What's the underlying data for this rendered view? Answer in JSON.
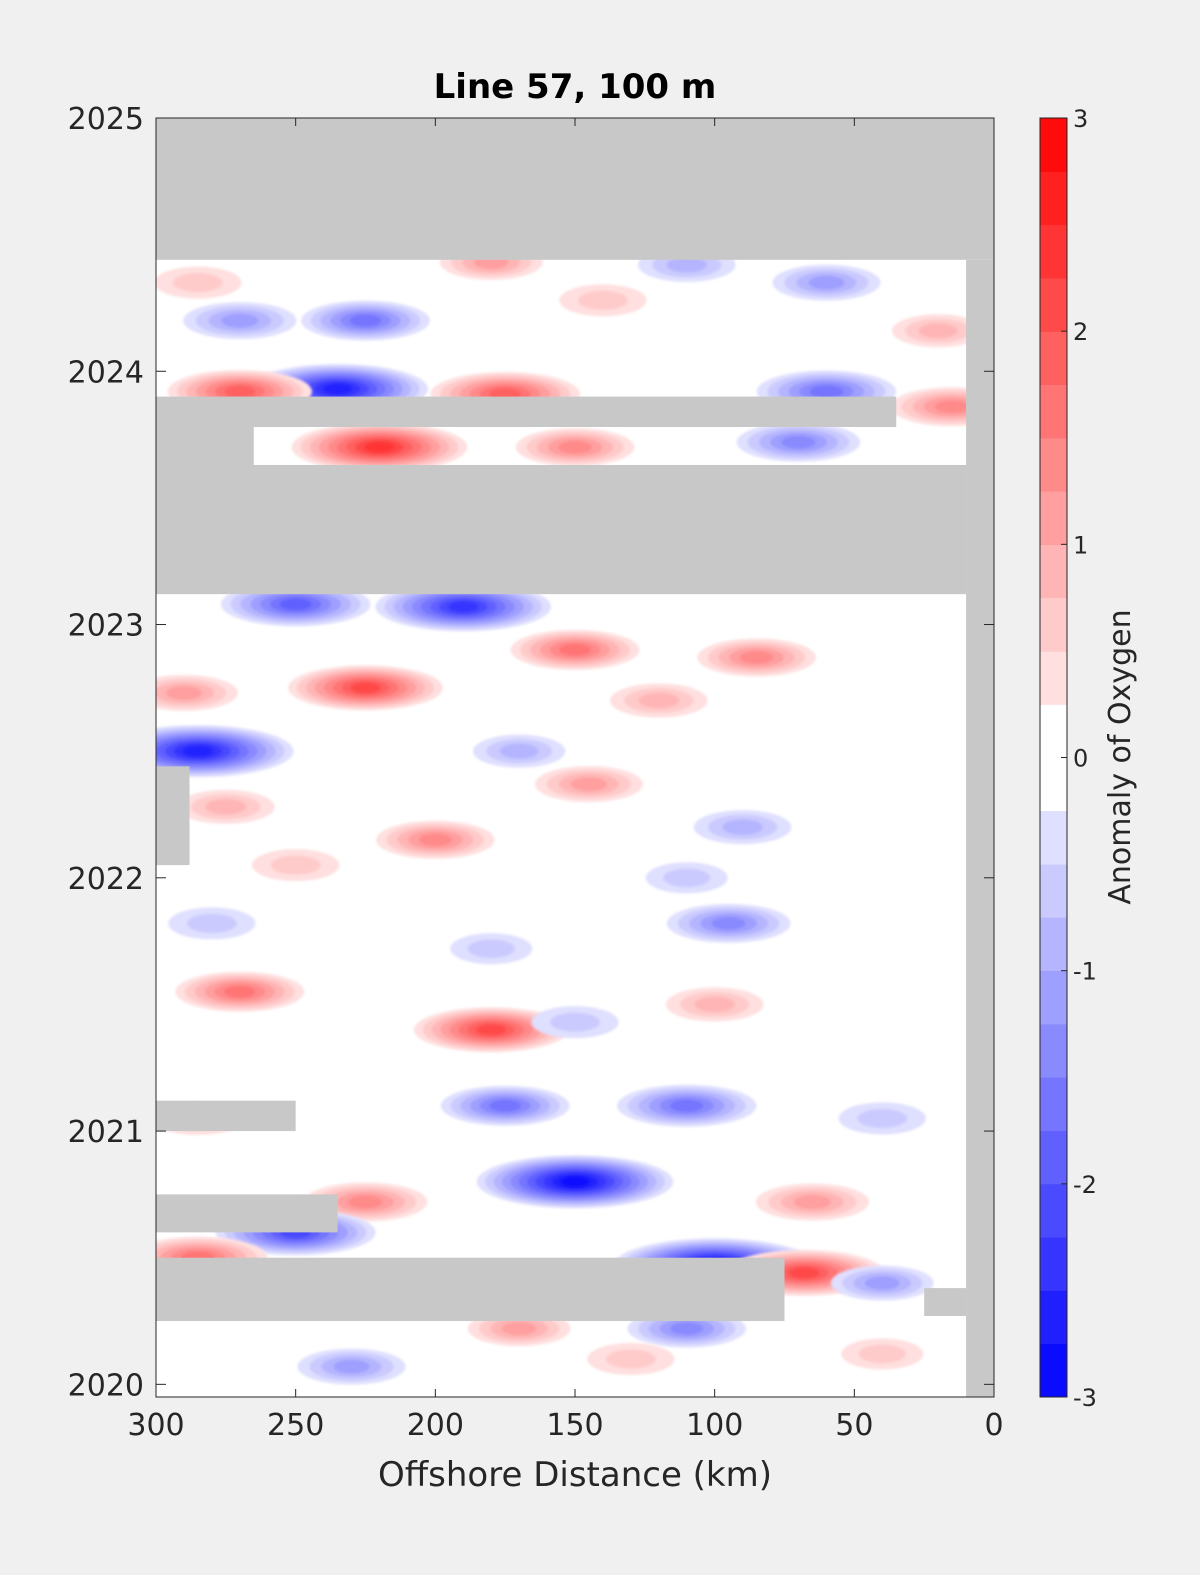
{
  "chart_data": {
    "type": "heatmap",
    "title": "Line 57, 100 m",
    "xlabel": "Offshore Distance (km)",
    "ylabel": "",
    "xlim": [
      300,
      0
    ],
    "ylim": [
      2019.95,
      2025
    ],
    "x_ticks": [
      "300",
      "250",
      "200",
      "150",
      "100",
      "50",
      "0"
    ],
    "x_tick_values": [
      300,
      250,
      200,
      150,
      100,
      50,
      0
    ],
    "y_ticks": [
      "2020",
      "2021",
      "2022",
      "2023",
      "2024",
      "2025"
    ],
    "y_tick_values": [
      2020,
      2021,
      2022,
      2023,
      2024,
      2025
    ],
    "colorbar": {
      "label": "Anomaly of Oxygen",
      "range": [
        -3,
        3
      ],
      "ticks": [
        "3",
        "2",
        "1",
        "0",
        "-1",
        "-2",
        "-3"
      ],
      "tick_values": [
        3,
        2,
        1,
        0,
        -1,
        -2,
        -3
      ],
      "levels": 24,
      "colormap": "blue-white-red",
      "low_color": "#0000ff",
      "high_color": "#ff0000",
      "zero_color": "#ffffff"
    },
    "missing_color": "#c8c8c8",
    "grid": false,
    "anomaly_features": [
      {
        "x": 285,
        "y": 2024.35,
        "value": 0.6
      },
      {
        "x": 180,
        "y": 2024.43,
        "value": 0.9
      },
      {
        "x": 110,
        "y": 2024.42,
        "value": -0.8
      },
      {
        "x": 60,
        "y": 2024.35,
        "value": -1.0
      },
      {
        "x": 270,
        "y": 2024.2,
        "value": -1.1
      },
      {
        "x": 225,
        "y": 2024.2,
        "value": -1.4
      },
      {
        "x": 140,
        "y": 2024.28,
        "value": 0.6
      },
      {
        "x": 20,
        "y": 2024.16,
        "value": 0.7
      },
      {
        "x": 235,
        "y": 2023.93,
        "value": -2.4
      },
      {
        "x": 270,
        "y": 2023.92,
        "value": 1.7
      },
      {
        "x": 175,
        "y": 2023.91,
        "value": 1.8
      },
      {
        "x": 60,
        "y": 2023.92,
        "value": -1.6
      },
      {
        "x": 15,
        "y": 2023.86,
        "value": 1.3
      },
      {
        "x": 220,
        "y": 2023.7,
        "value": 2.3
      },
      {
        "x": 150,
        "y": 2023.7,
        "value": 1.2
      },
      {
        "x": 70,
        "y": 2023.72,
        "value": -1.3
      },
      {
        "x": 190,
        "y": 2023.07,
        "value": -2.3
      },
      {
        "x": 250,
        "y": 2023.08,
        "value": -1.8
      },
      {
        "x": 150,
        "y": 2022.9,
        "value": 1.4
      },
      {
        "x": 85,
        "y": 2022.87,
        "value": 1.2
      },
      {
        "x": 225,
        "y": 2022.75,
        "value": 1.9
      },
      {
        "x": 290,
        "y": 2022.73,
        "value": 1.0
      },
      {
        "x": 120,
        "y": 2022.7,
        "value": 0.8
      },
      {
        "x": 285,
        "y": 2022.5,
        "value": -2.6
      },
      {
        "x": 170,
        "y": 2022.5,
        "value": -0.7
      },
      {
        "x": 145,
        "y": 2022.37,
        "value": 1.0
      },
      {
        "x": 275,
        "y": 2022.28,
        "value": 0.8
      },
      {
        "x": 200,
        "y": 2022.15,
        "value": 1.2
      },
      {
        "x": 90,
        "y": 2022.2,
        "value": -0.8
      },
      {
        "x": 250,
        "y": 2022.05,
        "value": 0.6
      },
      {
        "x": 110,
        "y": 2022.0,
        "value": -0.5
      },
      {
        "x": 95,
        "y": 2021.82,
        "value": -1.3
      },
      {
        "x": 280,
        "y": 2021.82,
        "value": -0.6
      },
      {
        "x": 180,
        "y": 2021.72,
        "value": -0.5
      },
      {
        "x": 270,
        "y": 2021.55,
        "value": 1.4
      },
      {
        "x": 180,
        "y": 2021.4,
        "value": 1.9
      },
      {
        "x": 100,
        "y": 2021.5,
        "value": 0.8
      },
      {
        "x": 150,
        "y": 2021.43,
        "value": -0.6
      },
      {
        "x": 175,
        "y": 2021.1,
        "value": -1.4
      },
      {
        "x": 110,
        "y": 2021.1,
        "value": -1.6
      },
      {
        "x": 285,
        "y": 2021.05,
        "value": 0.7
      },
      {
        "x": 40,
        "y": 2021.05,
        "value": -0.6
      },
      {
        "x": 150,
        "y": 2020.8,
        "value": -2.7
      },
      {
        "x": 225,
        "y": 2020.72,
        "value": 1.3
      },
      {
        "x": 65,
        "y": 2020.72,
        "value": 1.1
      },
      {
        "x": 250,
        "y": 2020.6,
        "value": -2.0
      },
      {
        "x": 100,
        "y": 2020.47,
        "value": -2.8
      },
      {
        "x": 68,
        "y": 2020.44,
        "value": 2.0
      },
      {
        "x": 285,
        "y": 2020.5,
        "value": 1.6
      },
      {
        "x": 40,
        "y": 2020.4,
        "value": -0.9
      },
      {
        "x": 170,
        "y": 2020.22,
        "value": 0.9
      },
      {
        "x": 110,
        "y": 2020.22,
        "value": -1.2
      },
      {
        "x": 230,
        "y": 2020.07,
        "value": -1.0
      },
      {
        "x": 130,
        "y": 2020.1,
        "value": 0.6
      },
      {
        "x": 40,
        "y": 2020.12,
        "value": 0.5
      }
    ],
    "missing_regions": [
      {
        "x0": 300,
        "x1": 0,
        "y0": 2024.44,
        "y1": 2025
      },
      {
        "x0": 10,
        "x1": 0,
        "y0": 2019.95,
        "y1": 2024.44
      },
      {
        "x0": 300,
        "x1": 10,
        "y0": 2023.12,
        "y1": 2023.63
      },
      {
        "x0": 300,
        "x1": 35,
        "y0": 2023.78,
        "y1": 2023.9
      },
      {
        "x0": 300,
        "x1": 265,
        "y0": 2023.62,
        "y1": 2023.8
      },
      {
        "x0": 300,
        "x1": 288,
        "y0": 2022.05,
        "y1": 2022.44
      },
      {
        "x0": 300,
        "x1": 250,
        "y0": 2021.0,
        "y1": 2021.12
      },
      {
        "x0": 300,
        "x1": 235,
        "y0": 2020.6,
        "y1": 2020.75
      },
      {
        "x0": 300,
        "x1": 75,
        "y0": 2020.25,
        "y1": 2020.5
      },
      {
        "x0": 25,
        "x1": 10,
        "y0": 2020.27,
        "y1": 2020.38
      }
    ]
  }
}
